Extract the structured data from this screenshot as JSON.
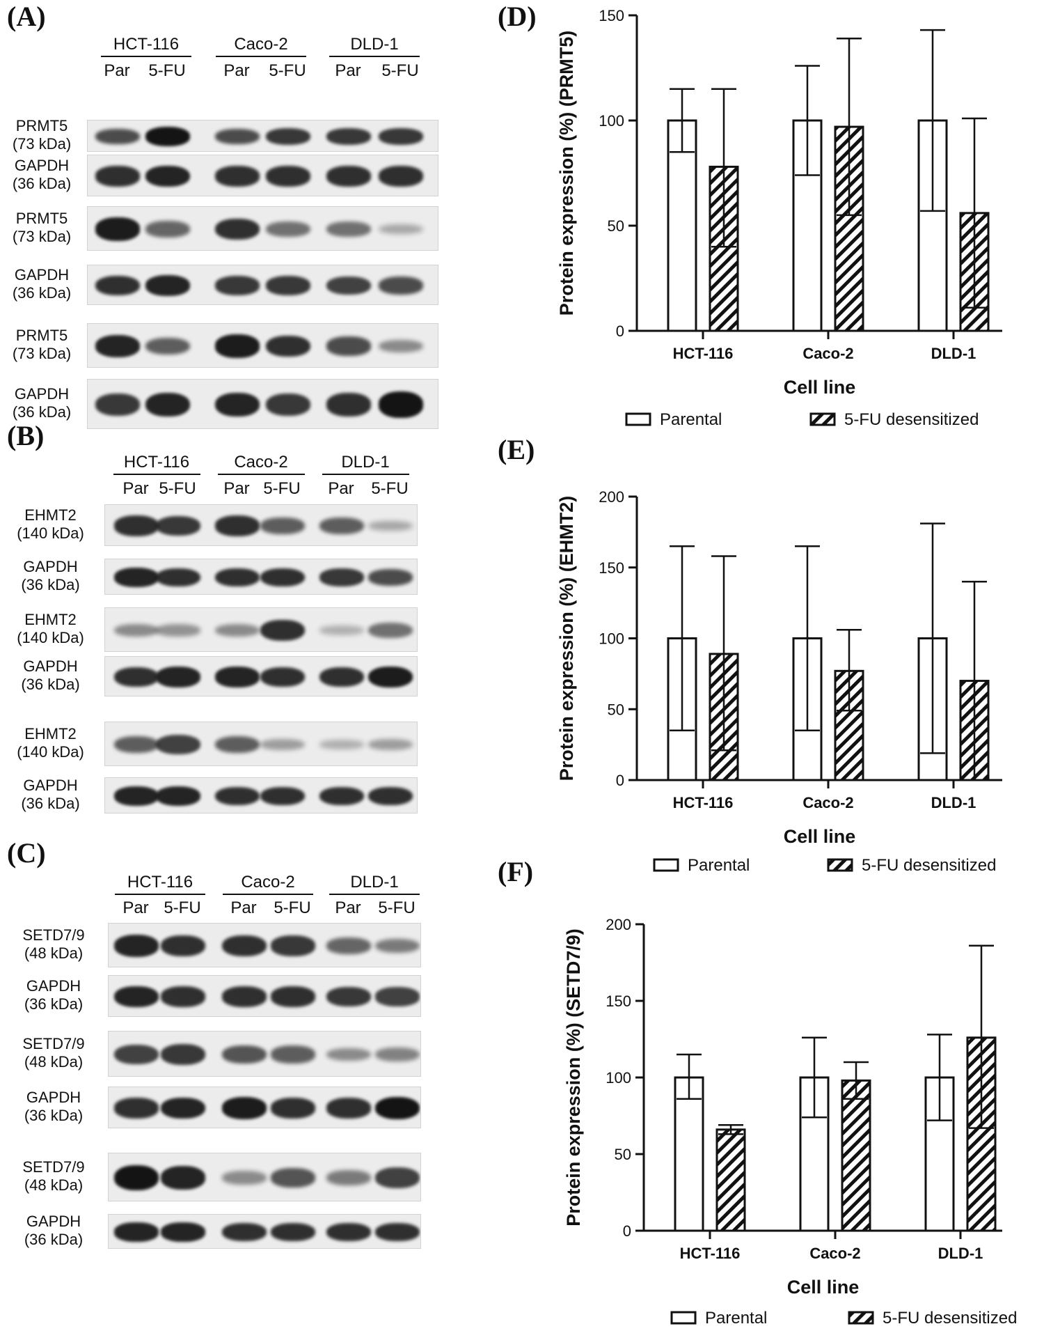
{
  "panel_labels": {
    "A": "(A)",
    "B": "(B)",
    "C": "(C)",
    "D": "(D)",
    "E": "(E)",
    "F": "(F)"
  },
  "blots": [
    {
      "id": "A",
      "groups": [
        "HCT-116",
        "Caco-2",
        "DLD-1"
      ],
      "lanes": [
        "Par",
        "5-FU",
        "Par",
        "5-FU",
        "Par",
        "5-FU"
      ],
      "rows": [
        {
          "label1": "PRMT5",
          "label2": "(73 kDa)",
          "intensity": [
            0.7,
            1.0,
            0.7,
            0.8,
            0.8,
            0.8
          ]
        },
        {
          "label1": "GAPDH",
          "label2": "(36 kDa)",
          "intensity": [
            0.85,
            0.9,
            0.85,
            0.85,
            0.85,
            0.85
          ]
        },
        {
          "label1": "PRMT5",
          "label2": "(73 kDa)",
          "intensity": [
            0.95,
            0.55,
            0.85,
            0.5,
            0.5,
            0.2
          ]
        },
        {
          "label1": "GAPDH",
          "label2": "(36 kDa)",
          "intensity": [
            0.85,
            0.9,
            0.8,
            0.8,
            0.75,
            0.7
          ]
        },
        {
          "label1": "PRMT5",
          "label2": "(73 kDa)",
          "intensity": [
            0.9,
            0.6,
            0.95,
            0.85,
            0.7,
            0.35
          ]
        },
        {
          "label1": "GAPDH",
          "label2": "(36 kDa)",
          "intensity": [
            0.8,
            0.9,
            0.9,
            0.8,
            0.85,
            1.0
          ]
        }
      ]
    },
    {
      "id": "B",
      "groups": [
        "HCT-116",
        "Caco-2",
        "DLD-1"
      ],
      "lanes": [
        "Par",
        "5-FU",
        "Par",
        "5-FU",
        "Par",
        "5-FU"
      ],
      "rows": [
        {
          "label1": "EHMT2",
          "label2": "(140 kDa)",
          "intensity": [
            0.85,
            0.8,
            0.85,
            0.6,
            0.6,
            0.2
          ]
        },
        {
          "label1": "GAPDH",
          "label2": "(36 kDa)",
          "intensity": [
            0.9,
            0.85,
            0.85,
            0.85,
            0.8,
            0.7
          ]
        },
        {
          "label1": "EHMT2",
          "label2": "(140 kDa)",
          "intensity": [
            0.35,
            0.3,
            0.35,
            0.85,
            0.15,
            0.5
          ]
        },
        {
          "label1": "GAPDH",
          "label2": "(36 kDa)",
          "intensity": [
            0.85,
            0.9,
            0.9,
            0.85,
            0.85,
            0.95
          ]
        },
        {
          "label1": "EHMT2",
          "label2": "(140 kDa)",
          "intensity": [
            0.6,
            0.75,
            0.6,
            0.25,
            0.15,
            0.25
          ]
        },
        {
          "label1": "GAPDH",
          "label2": "(36 kDa)",
          "intensity": [
            0.9,
            0.9,
            0.85,
            0.85,
            0.85,
            0.85
          ]
        }
      ]
    },
    {
      "id": "C",
      "groups": [
        "HCT-116",
        "Caco-2",
        "DLD-1"
      ],
      "lanes": [
        "Par",
        "5-FU",
        "Par",
        "5-FU",
        "Par",
        "5-FU"
      ],
      "rows": [
        {
          "label1": "SETD7/9",
          "label2": "(48 kDa)",
          "intensity": [
            0.9,
            0.85,
            0.85,
            0.8,
            0.55,
            0.45
          ]
        },
        {
          "label1": "GAPDH",
          "label2": "(36 kDa)",
          "intensity": [
            0.9,
            0.85,
            0.85,
            0.85,
            0.8,
            0.75
          ]
        },
        {
          "label1": "SETD7/9",
          "label2": "(48 kDa)",
          "intensity": [
            0.75,
            0.8,
            0.65,
            0.6,
            0.35,
            0.4
          ]
        },
        {
          "label1": "GAPDH",
          "label2": "(36 kDa)",
          "intensity": [
            0.85,
            0.9,
            0.95,
            0.85,
            0.85,
            1.0
          ]
        },
        {
          "label1": "SETD7/9",
          "label2": "(48 kDa)",
          "intensity": [
            1.0,
            0.9,
            0.35,
            0.65,
            0.45,
            0.75
          ]
        },
        {
          "label1": "GAPDH",
          "label2": "(36 kDa)",
          "intensity": [
            0.9,
            0.9,
            0.85,
            0.85,
            0.85,
            0.85
          ]
        }
      ]
    }
  ],
  "chart_data": [
    {
      "id": "D",
      "type": "bar",
      "categories": [
        "HCT-116",
        "Caco-2",
        "DLD-1"
      ],
      "series": [
        {
          "name": "Parental",
          "values": [
            100,
            100,
            100
          ],
          "err_low": [
            85,
            74,
            57
          ],
          "err_high": [
            115,
            126,
            143
          ]
        },
        {
          "name": "5-FU desensitized",
          "values": [
            78,
            97,
            56
          ],
          "err_low": [
            40,
            55,
            11
          ],
          "err_high": [
            115,
            139,
            101
          ]
        }
      ],
      "xlabel": "Cell line",
      "ylabel": "Protein expression (%) (PRMT5)",
      "ylim": [
        0,
        150
      ],
      "yticks": [
        "0",
        "50",
        "100",
        "150"
      ],
      "grid": false,
      "legend": "bottom"
    },
    {
      "id": "E",
      "type": "bar",
      "categories": [
        "HCT-116",
        "Caco-2",
        "DLD-1"
      ],
      "series": [
        {
          "name": "Parental",
          "values": [
            100,
            100,
            100
          ],
          "err_low": [
            35,
            35,
            19
          ],
          "err_high": [
            165,
            165,
            181
          ]
        },
        {
          "name": "5-FU desensitized",
          "values": [
            89,
            77,
            70
          ],
          "err_low": [
            21,
            49,
            0
          ],
          "err_high": [
            158,
            106,
            140
          ]
        }
      ],
      "xlabel": "Cell line",
      "ylabel": "Protein expression (%) (EHMT2)",
      "ylim": [
        0,
        200
      ],
      "yticks": [
        "0",
        "50",
        "100",
        "150",
        "200"
      ],
      "grid": false,
      "legend": "bottom"
    },
    {
      "id": "F",
      "type": "bar",
      "categories": [
        "HCT-116",
        "Caco-2",
        "DLD-1"
      ],
      "series": [
        {
          "name": "Parental",
          "values": [
            100,
            100,
            100
          ],
          "err_low": [
            86,
            74,
            72
          ],
          "err_high": [
            115,
            126,
            128
          ]
        },
        {
          "name": "5-FU desensitized",
          "values": [
            66,
            98,
            126
          ],
          "err_low": [
            63,
            86,
            67
          ],
          "err_high": [
            69,
            110,
            186
          ]
        }
      ],
      "xlabel": "Cell line",
      "ylabel": "Protein expression (%) (SETD7/9)",
      "ylim": [
        0,
        200
      ],
      "yticks": [
        "0",
        "50",
        "100",
        "150",
        "200"
      ],
      "grid": false,
      "legend": "bottom"
    }
  ]
}
